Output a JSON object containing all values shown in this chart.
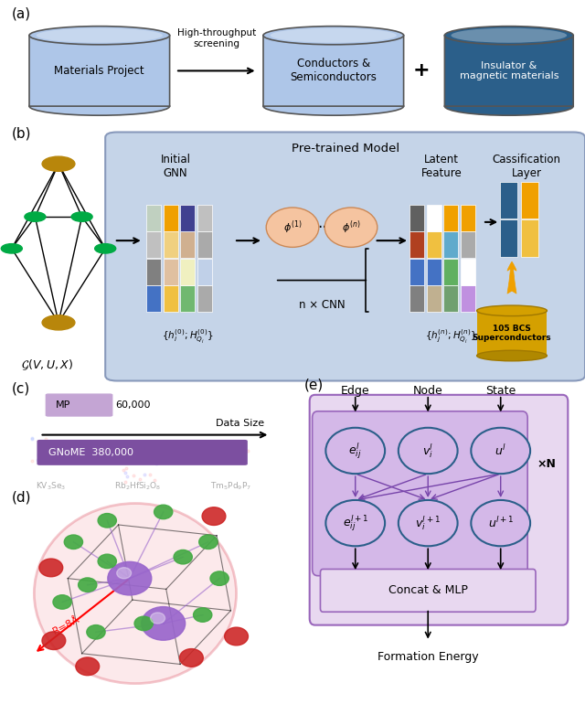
{
  "fig_width": 6.4,
  "fig_height": 7.82,
  "bg_color": "#ffffff",
  "panel_a": {
    "label": "(a)",
    "cylinder1_color": "#aec6e8",
    "cylinder2_color": "#aec6e8",
    "cylinder3_color": "#2b5f8a",
    "text1": "Materials Project",
    "text2": "Conductors &\nSemiconductors",
    "text3": "Insulator &\nmagnetic materials",
    "arrow_text": "High-throughput\nscreening",
    "plus_text": "+"
  },
  "panel_b": {
    "label": "(b)",
    "bg_color": "#c5d4e8",
    "title": "Pre-trained Model",
    "gnn_label": "Initial\nGNN",
    "latent_label": "Latent\nFeature",
    "class_label": "Cassification\nLayer",
    "cnn_label": "n × CNN",
    "formula1": "$\\{h_i^{(0)};H_{Q_i}^{(0)}\\}$",
    "formula2": "$\\{h_j^{(n)};H_{Q_i}^{(n)}\\}$",
    "bcs_text": "105 BCS\nSuperconductors",
    "graph_label": "$\\mathcal{G}(V, U, X)$"
  },
  "panel_c": {
    "label": "(c)",
    "bar1_color": "#c4a5d4",
    "bar1_text": "MP",
    "bar1_num": "60,000",
    "bar2_color": "#7c4fa0",
    "bar2_text": "GNoME  380,000",
    "axis_label": "Data Size"
  },
  "panel_d": {
    "label": "(d)",
    "radius_text": "R=8Å"
  },
  "panel_e": {
    "label": "(e)",
    "title_edge": "Edge",
    "title_node": "Node",
    "title_state": "State",
    "node_top": [
      "$e^l_{ij}$",
      "$v^l_i$",
      "$u^l$"
    ],
    "node_bot": [
      "$e^{l+1}_{ij}$",
      "$v^{l+1}_i$",
      "$u^{l+1}$"
    ],
    "times_n": "×N",
    "concat_text": "Concat & MLP",
    "output_text": "Formation Energy",
    "outer_bg": "#e8d8f0",
    "inner_bg": "#d4b8e8",
    "node_fill": "#d4b8e8",
    "node_edge": "#2b5f8a",
    "arrow_color": "#7744aa",
    "outer_edge_color": "#9966bb"
  }
}
